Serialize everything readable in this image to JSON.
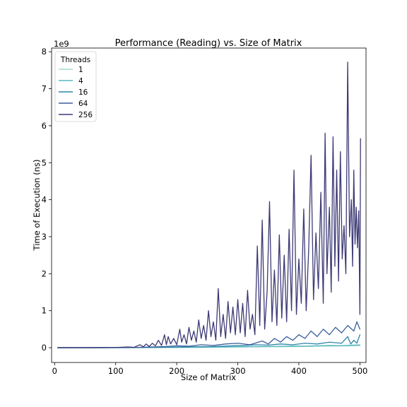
{
  "chart_data": {
    "type": "line",
    "title": "Performance (Reading) vs. Size of Matrix",
    "xlabel": "Size of Matrix",
    "ylabel": "Time of Execution (ns)",
    "y_scale_label": "1e9",
    "xlim": [
      -5,
      510
    ],
    "ylim": [
      -0.4,
      8.1
    ],
    "x_ticks": [
      0,
      100,
      200,
      300,
      400,
      500
    ],
    "y_ticks": [
      0,
      1,
      2,
      3,
      4,
      5,
      6,
      7,
      8
    ],
    "legend": {
      "title": "Threads",
      "location": "top-left"
    },
    "series": [
      {
        "name": "1",
        "color": "#a3dccf",
        "points": [
          [
            5,
            0.0
          ],
          [
            100,
            0.0
          ],
          [
            150,
            0.002
          ],
          [
            200,
            0.005
          ],
          [
            250,
            0.01
          ],
          [
            300,
            0.015
          ],
          [
            350,
            0.022
          ],
          [
            400,
            0.03
          ],
          [
            430,
            0.04
          ],
          [
            460,
            0.045
          ],
          [
            490,
            0.05
          ],
          [
            500,
            0.055
          ]
        ]
      },
      {
        "name": "4",
        "color": "#52b7c2",
        "points": [
          [
            5,
            0.0
          ],
          [
            100,
            0.0
          ],
          [
            150,
            0.004
          ],
          [
            200,
            0.008
          ],
          [
            250,
            0.015
          ],
          [
            300,
            0.025
          ],
          [
            330,
            0.03
          ],
          [
            360,
            0.035
          ],
          [
            390,
            0.045
          ],
          [
            410,
            0.04
          ],
          [
            430,
            0.05
          ],
          [
            450,
            0.06
          ],
          [
            470,
            0.055
          ],
          [
            490,
            0.07
          ],
          [
            500,
            0.075
          ]
        ]
      },
      {
        "name": "16",
        "color": "#2f85a8",
        "points": [
          [
            5,
            0.0
          ],
          [
            100,
            0.003
          ],
          [
            150,
            0.008
          ],
          [
            200,
            0.015
          ],
          [
            230,
            0.025
          ],
          [
            260,
            0.03
          ],
          [
            290,
            0.05
          ],
          [
            310,
            0.06
          ],
          [
            330,
            0.08
          ],
          [
            350,
            0.07
          ],
          [
            370,
            0.1
          ],
          [
            390,
            0.08
          ],
          [
            410,
            0.12
          ],
          [
            430,
            0.1
          ],
          [
            450,
            0.15
          ],
          [
            470,
            0.12
          ],
          [
            480,
            0.3
          ],
          [
            485,
            0.1
          ],
          [
            490,
            0.2
          ],
          [
            495,
            0.12
          ],
          [
            500,
            0.35
          ]
        ]
      },
      {
        "name": "64",
        "color": "#3b5f9c",
        "points": [
          [
            5,
            0.0
          ],
          [
            100,
            0.005
          ],
          [
            140,
            0.01
          ],
          [
            180,
            0.03
          ],
          [
            200,
            0.05
          ],
          [
            220,
            0.04
          ],
          [
            240,
            0.08
          ],
          [
            260,
            0.06
          ],
          [
            280,
            0.1
          ],
          [
            300,
            0.12
          ],
          [
            320,
            0.08
          ],
          [
            340,
            0.18
          ],
          [
            350,
            0.1
          ],
          [
            360,
            0.25
          ],
          [
            370,
            0.15
          ],
          [
            380,
            0.3
          ],
          [
            390,
            0.2
          ],
          [
            400,
            0.35
          ],
          [
            410,
            0.25
          ],
          [
            420,
            0.45
          ],
          [
            430,
            0.3
          ],
          [
            440,
            0.5
          ],
          [
            450,
            0.35
          ],
          [
            460,
            0.55
          ],
          [
            470,
            0.4
          ],
          [
            480,
            0.6
          ],
          [
            490,
            0.45
          ],
          [
            495,
            0.7
          ],
          [
            500,
            0.5
          ]
        ]
      },
      {
        "name": "256",
        "color": "#3d3a75",
        "points": [
          [
            5,
            0.0
          ],
          [
            60,
            0.0
          ],
          [
            100,
            0.005
          ],
          [
            120,
            0.02
          ],
          [
            130,
            0.01
          ],
          [
            140,
            0.08
          ],
          [
            145,
            0.02
          ],
          [
            150,
            0.1
          ],
          [
            155,
            0.03
          ],
          [
            160,
            0.12
          ],
          [
            165,
            0.05
          ],
          [
            170,
            0.2
          ],
          [
            175,
            0.06
          ],
          [
            180,
            0.35
          ],
          [
            183,
            0.08
          ],
          [
            186,
            0.3
          ],
          [
            190,
            0.1
          ],
          [
            195,
            0.25
          ],
          [
            200,
            0.08
          ],
          [
            205,
            0.5
          ],
          [
            208,
            0.15
          ],
          [
            212,
            0.35
          ],
          [
            216,
            0.1
          ],
          [
            220,
            0.55
          ],
          [
            224,
            0.2
          ],
          [
            228,
            0.45
          ],
          [
            232,
            0.15
          ],
          [
            236,
            0.75
          ],
          [
            240,
            0.25
          ],
          [
            244,
            0.6
          ],
          [
            248,
            0.2
          ],
          [
            252,
            1.0
          ],
          [
            256,
            0.3
          ],
          [
            260,
            0.7
          ],
          [
            264,
            0.2
          ],
          [
            268,
            1.6
          ],
          [
            272,
            0.3
          ],
          [
            276,
            0.9
          ],
          [
            280,
            0.25
          ],
          [
            284,
            1.25
          ],
          [
            288,
            0.4
          ],
          [
            292,
            1.1
          ],
          [
            296,
            0.35
          ],
          [
            300,
            1.3
          ],
          [
            304,
            0.4
          ],
          [
            308,
            1.2
          ],
          [
            312,
            0.3
          ],
          [
            316,
            1.55
          ],
          [
            320,
            0.5
          ],
          [
            324,
            0.9
          ],
          [
            328,
            0.35
          ],
          [
            332,
            2.75
          ],
          [
            336,
            0.6
          ],
          [
            340,
            3.45
          ],
          [
            344,
            0.5
          ],
          [
            348,
            1.5
          ],
          [
            352,
            3.95
          ],
          [
            356,
            0.7
          ],
          [
            360,
            2.1
          ],
          [
            364,
            0.6
          ],
          [
            368,
            3.05
          ],
          [
            372,
            0.8
          ],
          [
            376,
            2.5
          ],
          [
            380,
            0.7
          ],
          [
            384,
            3.2
          ],
          [
            388,
            1.0
          ],
          [
            392,
            4.8
          ],
          [
            396,
            0.9
          ],
          [
            400,
            2.4
          ],
          [
            404,
            1.2
          ],
          [
            408,
            3.75
          ],
          [
            412,
            1.0
          ],
          [
            416,
            2.6
          ],
          [
            420,
            5.2
          ],
          [
            424,
            1.3
          ],
          [
            428,
            3.1
          ],
          [
            432,
            1.6
          ],
          [
            436,
            4.2
          ],
          [
            440,
            1.2
          ],
          [
            443,
            5.8
          ],
          [
            446,
            2.0
          ],
          [
            450,
            3.8
          ],
          [
            453,
            1.5
          ],
          [
            456,
            5.7
          ],
          [
            459,
            2.2
          ],
          [
            462,
            4.8
          ],
          [
            465,
            1.8
          ],
          [
            468,
            5.3
          ],
          [
            471,
            2.4
          ],
          [
            474,
            3.3
          ],
          [
            477,
            2.0
          ],
          [
            480,
            7.72
          ],
          [
            483,
            3.0
          ],
          [
            486,
            4.0
          ],
          [
            488,
            2.2
          ],
          [
            490,
            4.8
          ],
          [
            492,
            2.8
          ],
          [
            494,
            3.8
          ],
          [
            496,
            2.7
          ],
          [
            498,
            3.7
          ],
          [
            500,
            0.9
          ],
          [
            501,
            5.65
          ]
        ]
      }
    ]
  }
}
